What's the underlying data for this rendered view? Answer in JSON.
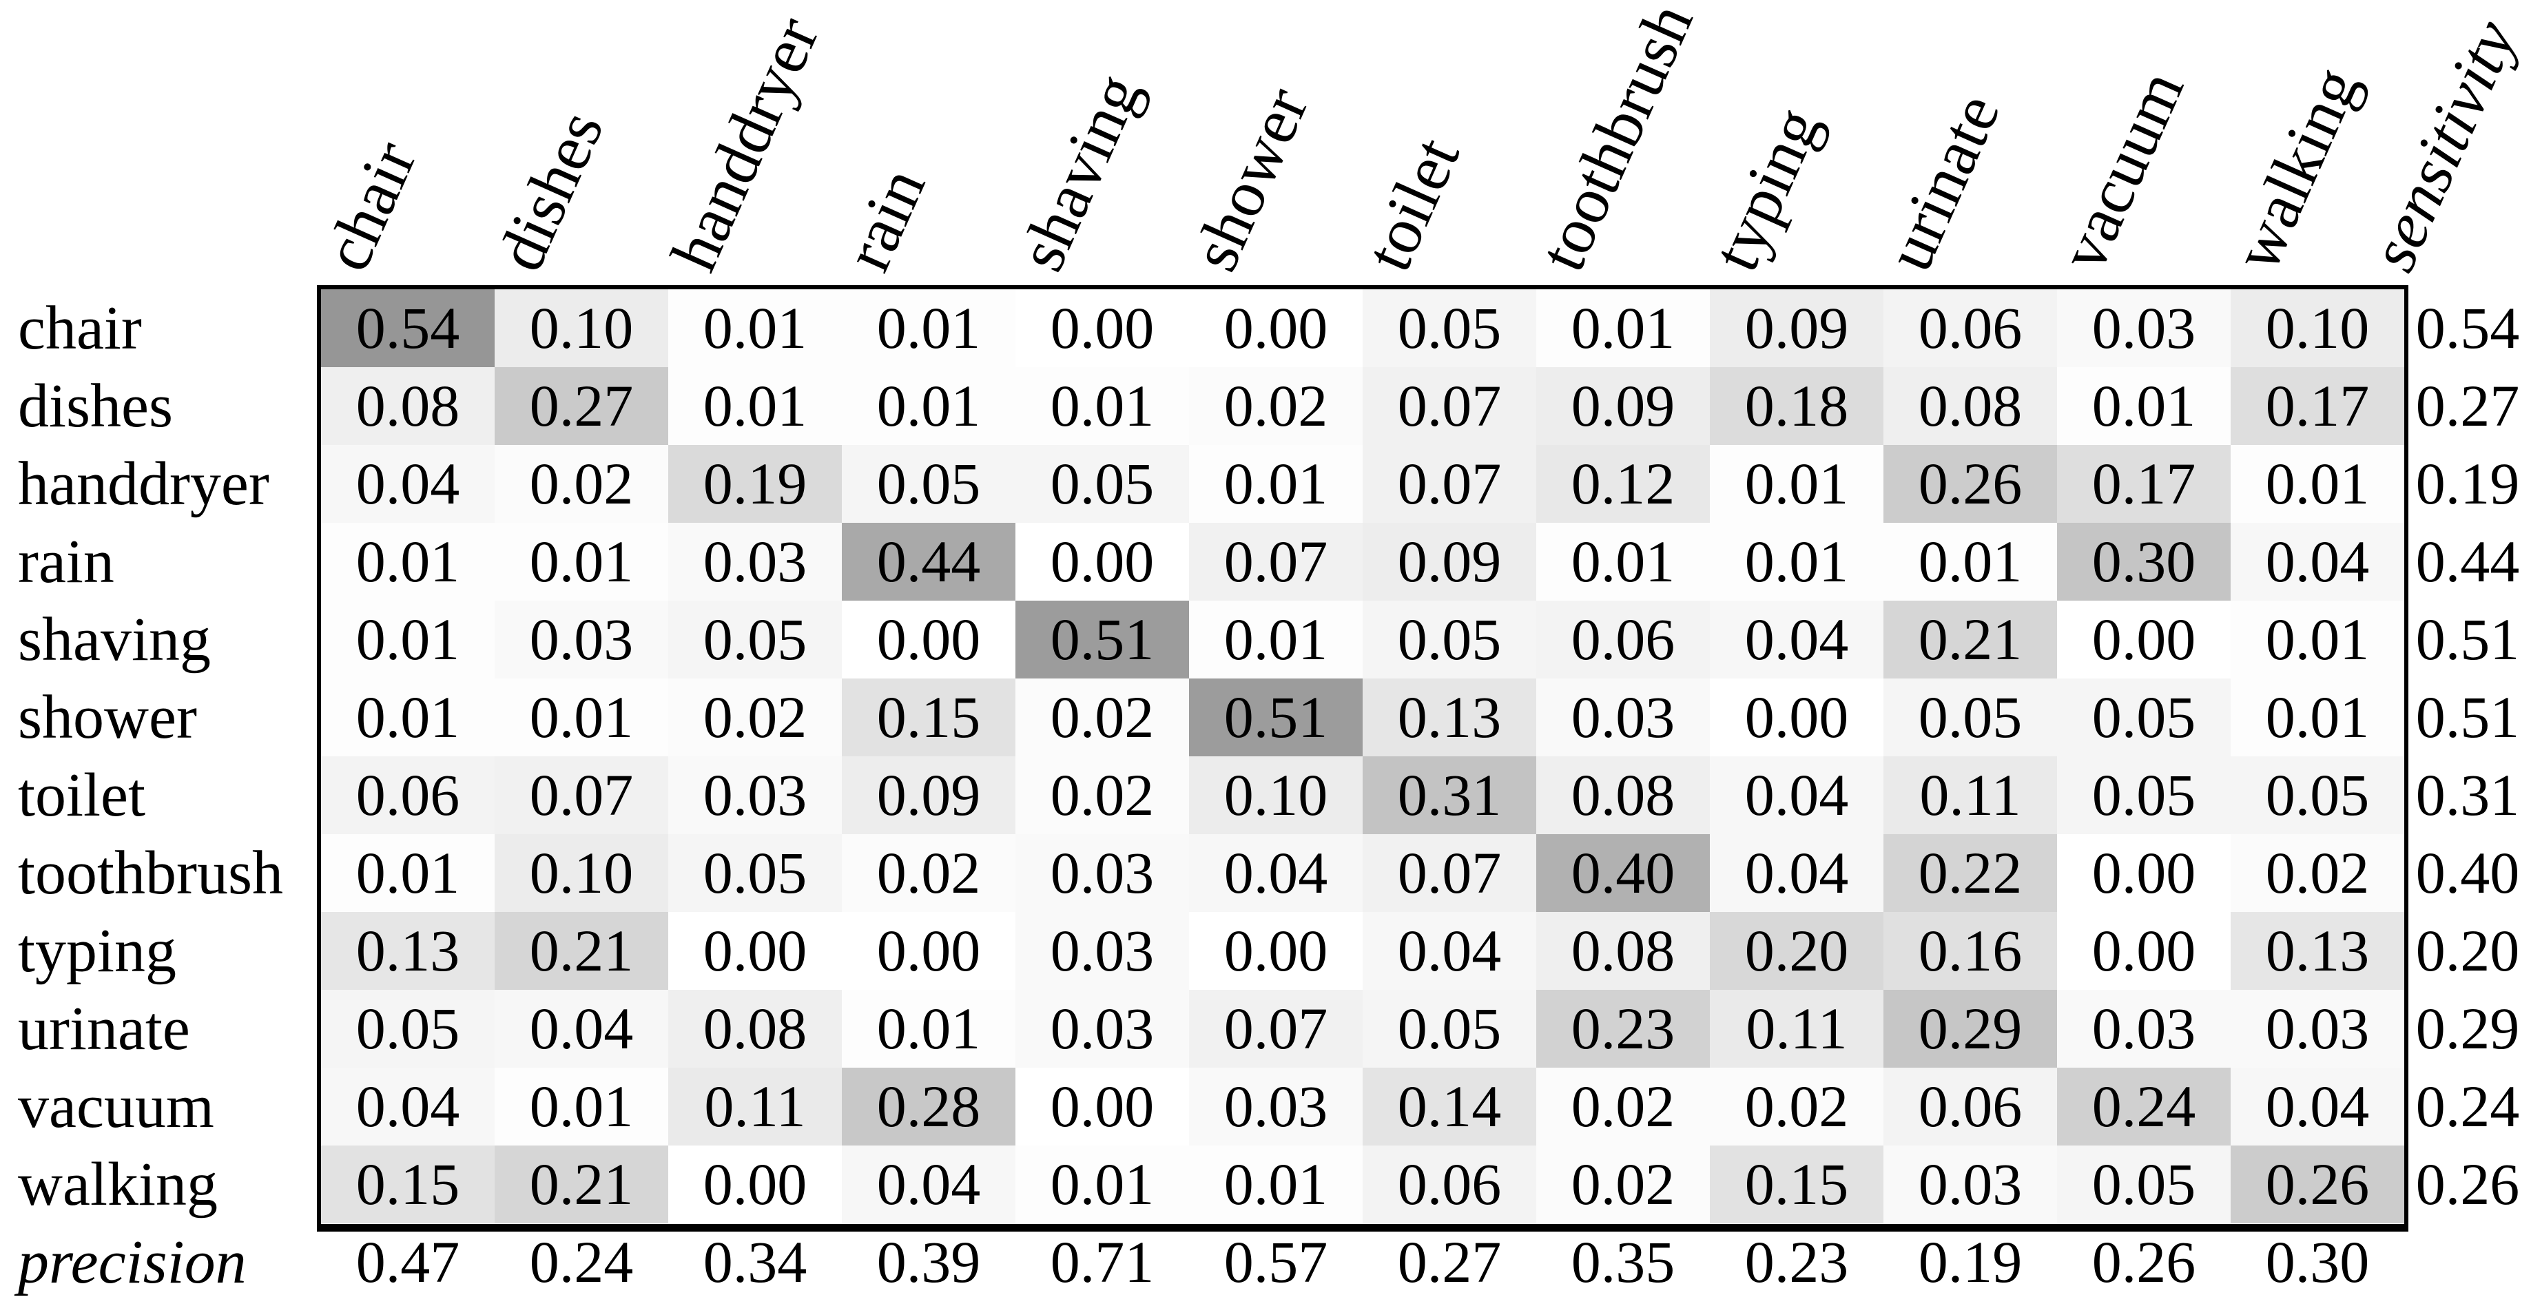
{
  "figure": {
    "kind": "confusion-matrix",
    "background_color": "#ffffff",
    "text_color": "#000000",
    "border_color": "#000000"
  },
  "chart_data": {
    "type": "heatmap",
    "title": "",
    "rows": [
      "chair",
      "dishes",
      "handdryer",
      "rain",
      "shaving",
      "shower",
      "toilet",
      "toothbrush",
      "typing",
      "urinate",
      "vacuum",
      "walking"
    ],
    "columns": [
      "chair",
      "dishes",
      "handdryer",
      "rain",
      "shaving",
      "shower",
      "toilet",
      "toothbrush",
      "typing",
      "urinate",
      "vacuum",
      "walking"
    ],
    "sensitivity_column_label": "sensitivity",
    "precision_row_label": "precision",
    "matrix": [
      [
        0.54,
        0.1,
        0.01,
        0.01,
        0.0,
        0.0,
        0.05,
        0.01,
        0.09,
        0.06,
        0.03,
        0.1
      ],
      [
        0.08,
        0.27,
        0.01,
        0.01,
        0.01,
        0.02,
        0.07,
        0.09,
        0.18,
        0.08,
        0.01,
        0.17
      ],
      [
        0.04,
        0.02,
        0.19,
        0.05,
        0.05,
        0.01,
        0.07,
        0.12,
        0.01,
        0.26,
        0.17,
        0.01
      ],
      [
        0.01,
        0.01,
        0.03,
        0.44,
        0.0,
        0.07,
        0.09,
        0.01,
        0.01,
        0.01,
        0.3,
        0.04
      ],
      [
        0.01,
        0.03,
        0.05,
        0.0,
        0.51,
        0.01,
        0.05,
        0.06,
        0.04,
        0.21,
        0.0,
        0.01
      ],
      [
        0.01,
        0.01,
        0.02,
        0.15,
        0.02,
        0.51,
        0.13,
        0.03,
        0.0,
        0.05,
        0.05,
        0.01
      ],
      [
        0.06,
        0.07,
        0.03,
        0.09,
        0.02,
        0.1,
        0.31,
        0.08,
        0.04,
        0.11,
        0.05,
        0.05
      ],
      [
        0.01,
        0.1,
        0.05,
        0.02,
        0.03,
        0.04,
        0.07,
        0.4,
        0.04,
        0.22,
        0.0,
        0.02
      ],
      [
        0.13,
        0.21,
        0.0,
        0.0,
        0.03,
        0.0,
        0.04,
        0.08,
        0.2,
        0.16,
        0.0,
        0.13
      ],
      [
        0.05,
        0.04,
        0.08,
        0.01,
        0.03,
        0.07,
        0.05,
        0.23,
        0.11,
        0.29,
        0.03,
        0.03
      ],
      [
        0.04,
        0.01,
        0.11,
        0.28,
        0.0,
        0.03,
        0.14,
        0.02,
        0.02,
        0.06,
        0.24,
        0.04
      ],
      [
        0.15,
        0.21,
        0.0,
        0.04,
        0.01,
        0.01,
        0.06,
        0.02,
        0.15,
        0.03,
        0.05,
        0.26
      ]
    ],
    "sensitivity": [
      0.54,
      0.27,
      0.19,
      0.44,
      0.51,
      0.51,
      0.31,
      0.4,
      0.2,
      0.29,
      0.24,
      0.26
    ],
    "precision": [
      0.47,
      0.24,
      0.34,
      0.39,
      0.71,
      0.57,
      0.27,
      0.35,
      0.23,
      0.19,
      0.26,
      0.3
    ],
    "value_range": [
      0,
      1
    ],
    "colormap": {
      "zero_color": "#ffffff",
      "mid_example_color": "#969696",
      "gray_slope_per_unit": 195
    },
    "legend_position": "none",
    "grid": false
  }
}
